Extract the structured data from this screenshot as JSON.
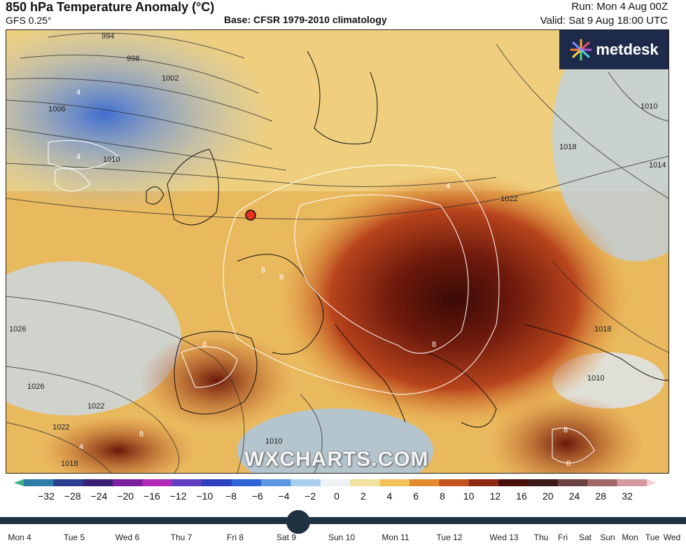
{
  "header": {
    "title": "850 hPa Temperature Anomaly (°C)",
    "model": "GFS 0.25°",
    "base": "Base: CFSR 1979-2010 climatology",
    "run": "Run: Mon 4 Aug 00Z",
    "valid": "Valid: Sat 9 Aug 18:00 UTC"
  },
  "logo": {
    "text": "metdesk",
    "icon": "metdesk-burst-icon"
  },
  "watermark": "WXCHARTS.COM",
  "map": {
    "pressure_labels": [
      "994",
      "998",
      "1002",
      "1006",
      "1010",
      "1010",
      "1014",
      "1018",
      "1022",
      "1026",
      "1022",
      "1018",
      "1010",
      "1018",
      "1010",
      "1026",
      "1022"
    ],
    "anomaly_labels": [
      "4",
      "4",
      "4",
      "8",
      "8",
      "8",
      "8",
      "8",
      "8",
      "4",
      "8"
    ],
    "marker": "location-marker"
  },
  "colorbar": {
    "ticks": [
      "−32",
      "−28",
      "−24",
      "−20",
      "−16",
      "−12",
      "−10",
      "−8",
      "−6",
      "−4",
      "−2",
      "0",
      "2",
      "4",
      "6",
      "8",
      "10",
      "12",
      "16",
      "20",
      "24",
      "28",
      "32"
    ],
    "colors": [
      "#3cb07d",
      "#2e7da8",
      "#2a3f8f",
      "#3b1f74",
      "#7b1fa0",
      "#b02ab5",
      "#5e3fbf",
      "#2b3fbf",
      "#2f63d6",
      "#5b97e2",
      "#a9cdef",
      "#eef2f5",
      "#f2e0a0",
      "#f0c05a",
      "#e48a2e",
      "#c4541f",
      "#8f2a14",
      "#4a0f08",
      "#3b1a1a",
      "#6b4040",
      "#a06868",
      "#d59aa0",
      "#f1cfd5"
    ]
  },
  "timeline": {
    "current": "Sat 9",
    "days": [
      "Mon 4",
      "Tue 5",
      "Wed 6",
      "Thu 7",
      "Fri 8",
      "Sat 9",
      "Sun 10",
      "Mon 11",
      "Tue 12",
      "Wed 13",
      "Thu",
      "Fri",
      "Sat",
      "Sun",
      "Mon",
      "Tue",
      "Wed"
    ]
  }
}
